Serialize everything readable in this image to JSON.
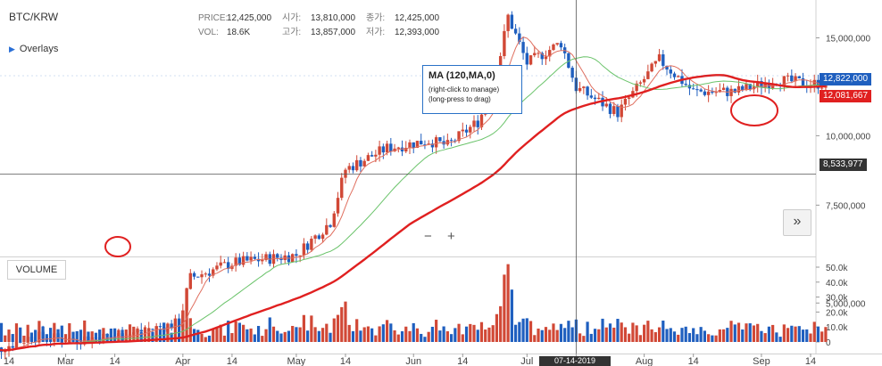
{
  "symbol": "BTC/KRW",
  "overlays_label": "Overlays",
  "ohlc": {
    "price_key": "PRICE:",
    "price_val": "12,425,000",
    "vol_key": "VOL:",
    "vol_val": "18.6K",
    "open_key": "시가:",
    "open_val": "13,810,000",
    "high_key": "고가:",
    "high_val": "13,857,000",
    "close_key": "종가:",
    "close_val": "12,425,000",
    "low_key": "저가:",
    "low_val": "12,393,000"
  },
  "tooltip": {
    "title": "MA (120,MA,0)",
    "line1": "(right-click to manage)",
    "line2": "(long-press to drag)"
  },
  "controls": {
    "zoom_out": "−",
    "zoom_in": "+",
    "next": "»",
    "volume": "VOLUME"
  },
  "price_tags": {
    "last": "12,822,000",
    "ma120": "12,081,667",
    "crosshair": "8,533,977"
  },
  "crosshair_date": "07-14-2019",
  "colors": {
    "up": "#d14836",
    "down": "#1f5fbf",
    "ma_short": "#e07060",
    "ma_mid": "#6ac36a",
    "ma_long": "#e02020",
    "accent": "#2a72c7"
  },
  "chart_data": {
    "type": "candlestick",
    "price_axis": {
      "ticks": [
        "15,000,000",
        "10,000,000",
        "7,500,000",
        "5,000,000"
      ],
      "scale": "log"
    },
    "volume_axis": {
      "ticks": [
        "50.0k",
        "40.0k",
        "30.0k",
        "20.0k",
        "10.0k",
        "0"
      ]
    },
    "x_tick_labels": [
      "14",
      "Mar",
      "14",
      "Apr",
      "14",
      "May",
      "14",
      "Jun",
      "14",
      "Jul",
      "14",
      "Aug",
      "14",
      "Sep",
      "14"
    ],
    "ohlc_points": [
      {
        "date": "2019-02-10",
        "close": 4100000
      },
      {
        "date": "2019-02-20",
        "close": 4350000
      },
      {
        "date": "2019-03-01",
        "close": 4300000
      },
      {
        "date": "2019-03-14",
        "close": 4350000
      },
      {
        "date": "2019-03-31",
        "close": 4600000
      },
      {
        "date": "2019-04-03",
        "close": 5550000
      },
      {
        "date": "2019-04-14",
        "close": 5900000
      },
      {
        "date": "2019-05-01",
        "close": 6100000
      },
      {
        "date": "2019-05-10",
        "close": 7000000
      },
      {
        "date": "2019-05-14",
        "close": 8700000
      },
      {
        "date": "2019-05-25",
        "close": 9500000
      },
      {
        "date": "2019-06-05",
        "close": 9800000
      },
      {
        "date": "2019-06-10",
        "close": 9600000
      },
      {
        "date": "2019-06-18",
        "close": 10600000
      },
      {
        "date": "2019-06-22",
        "close": 12000000
      },
      {
        "date": "2019-06-26",
        "close": 16400000
      },
      {
        "date": "2019-07-01",
        "close": 13500000
      },
      {
        "date": "2019-07-10",
        "close": 14700000
      },
      {
        "date": "2019-07-14",
        "close": 12200000
      },
      {
        "date": "2019-07-25",
        "close": 11000000
      },
      {
        "date": "2019-08-05",
        "close": 13700000
      },
      {
        "date": "2019-08-14",
        "close": 12000000
      },
      {
        "date": "2019-08-25",
        "close": 12000000
      },
      {
        "date": "2019-09-05",
        "close": 12600000
      },
      {
        "date": "2019-09-14",
        "close": 12400000
      },
      {
        "date": "2019-09-18",
        "close": 12425000
      }
    ],
    "moving_averages": [
      {
        "name": "MA (120,MA,0)",
        "color": "#e02020",
        "last": 12081667
      },
      {
        "color": "#6ac36a"
      },
      {
        "color": "#e07060"
      }
    ],
    "crosshair": {
      "date": "07-14-2019",
      "price": 8533977
    },
    "current_price": 12822000
  }
}
